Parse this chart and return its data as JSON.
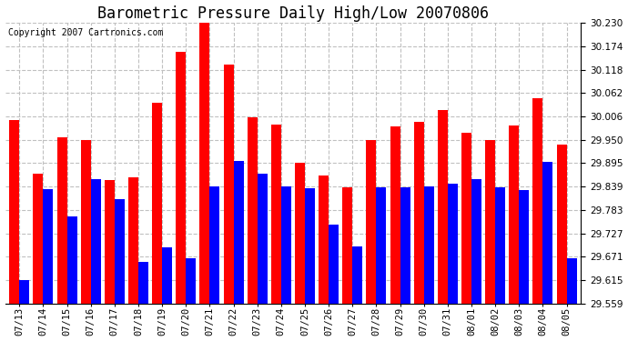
{
  "title": "Barometric Pressure Daily High/Low 20070806",
  "copyright": "Copyright 2007 Cartronics.com",
  "dates": [
    "07/13",
    "07/14",
    "07/15",
    "07/16",
    "07/17",
    "07/18",
    "07/19",
    "07/20",
    "07/21",
    "07/22",
    "07/23",
    "07/24",
    "07/25",
    "07/26",
    "07/27",
    "07/28",
    "07/29",
    "07/30",
    "07/31",
    "08/01",
    "08/02",
    "08/03",
    "08/04",
    "08/05"
  ],
  "highs": [
    29.997,
    29.87,
    29.957,
    29.95,
    29.855,
    29.862,
    30.04,
    30.16,
    30.24,
    30.13,
    30.005,
    29.988,
    29.895,
    29.865,
    29.838,
    29.95,
    29.983,
    29.993,
    30.022,
    29.968,
    29.95,
    29.985,
    30.05,
    29.94
  ],
  "lows": [
    29.615,
    29.833,
    29.768,
    29.857,
    29.808,
    29.66,
    29.693,
    29.667,
    29.84,
    29.9,
    29.87,
    29.84,
    29.835,
    29.748,
    29.695,
    29.838,
    29.838,
    29.84,
    29.846,
    29.857,
    29.838,
    29.83,
    29.898,
    29.668
  ],
  "high_color": "#ff0000",
  "low_color": "#0000ff",
  "background_color": "#ffffff",
  "plot_bg_color": "#ffffff",
  "grid_color": "#c0c0c0",
  "ymin": 29.559,
  "ymax": 30.23,
  "yticks": [
    29.559,
    29.615,
    29.671,
    29.727,
    29.783,
    29.839,
    29.895,
    29.95,
    30.006,
    30.062,
    30.118,
    30.174,
    30.23
  ],
  "title_fontsize": 12,
  "copyright_fontsize": 7,
  "tick_fontsize": 7.5,
  "bar_width": 0.42
}
